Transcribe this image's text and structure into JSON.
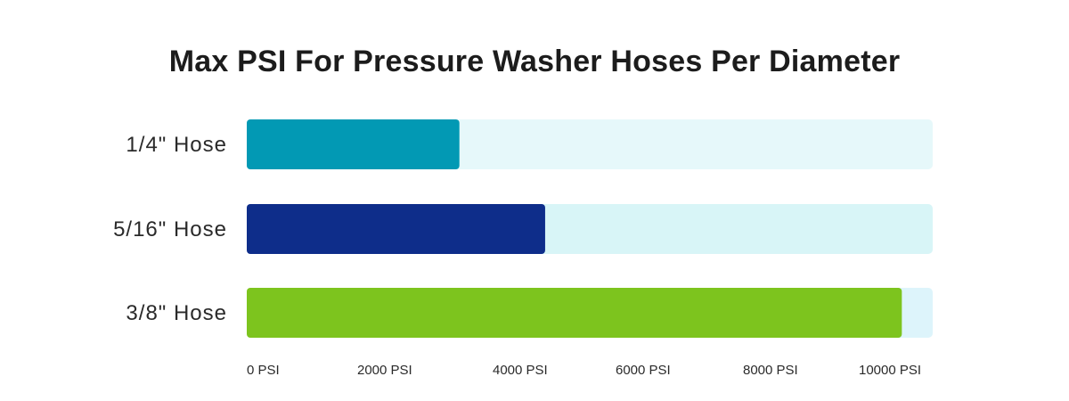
{
  "chart_data": {
    "type": "bar",
    "orientation": "horizontal",
    "title": "Max PSI For Pressure Washer Hoses Per Diameter",
    "xlabel": "",
    "ylabel": "",
    "categories": [
      "1/4\" Hose",
      "5/16\" Hose",
      "3/8\" Hose"
    ],
    "values": [
      3100,
      4350,
      9550
    ],
    "xlim": [
      0,
      10000
    ],
    "ticks": [
      {
        "value": 0,
        "label": "0 PSI"
      },
      {
        "value": 2000,
        "label": "2000 PSI"
      },
      {
        "value": 4000,
        "label": "4000 PSI"
      },
      {
        "value": 6000,
        "label": "6000 PSI"
      },
      {
        "value": 8000,
        "label": "8000 PSI"
      },
      {
        "value": 10000,
        "label": "10000 PSI"
      }
    ],
    "bar_colors": [
      "#0299B4",
      "#0E2D8A",
      "#7DC41E"
    ],
    "track_colors": [
      "#E6F8FA",
      "#D8F5F7",
      "#DDF4FB"
    ],
    "grid": false,
    "legend": "none"
  }
}
